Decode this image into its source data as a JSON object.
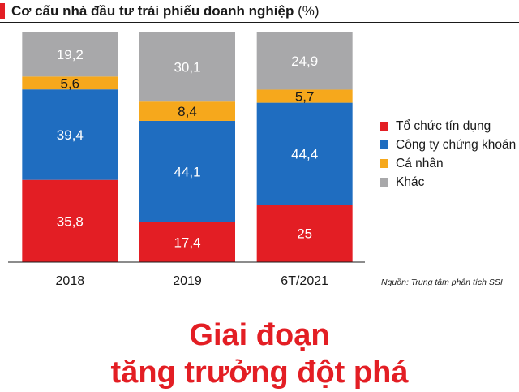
{
  "header": {
    "title": "Cơ cấu nhà đầu tư trái phiếu doanh nghiệp",
    "unit": "(%)"
  },
  "chart_data": {
    "type": "bar",
    "stacked": true,
    "categories": [
      "2018",
      "2019",
      "6T/2021"
    ],
    "series": [
      {
        "name": "Tổ chức tín dụng",
        "values": [
          35.8,
          17.4,
          25
        ],
        "labels": [
          "35,8",
          "17,4",
          "25"
        ],
        "color": "#e31e24"
      },
      {
        "name": "Công ty chứng khoán",
        "values": [
          39.4,
          44.1,
          44.4
        ],
        "labels": [
          "39,4",
          "44,1",
          "44,4"
        ],
        "color": "#1f6dc0"
      },
      {
        "name": "Cá nhân",
        "values": [
          5.6,
          8.4,
          5.7
        ],
        "labels": [
          "5,6",
          "8,4",
          "5,7"
        ],
        "color": "#f6a81c"
      },
      {
        "name": "Khác",
        "values": [
          19.2,
          30.1,
          24.9
        ],
        "labels": [
          "19,2",
          "30,1",
          "24,9"
        ],
        "color": "#a8a8aa"
      }
    ],
    "ylim": [
      0,
      100
    ],
    "grid": false,
    "legend_position": "right",
    "label_color": "#ffffff",
    "label_color_on_light": "#1a1a1a"
  },
  "source_note": "Nguồn: Trung tâm phân tích SSI",
  "headline": {
    "line1": "Giai đoạn",
    "line2": "tăng trưởng đột phá"
  }
}
